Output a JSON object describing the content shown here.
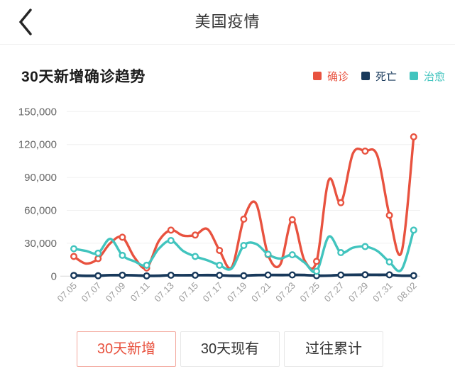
{
  "header": {
    "title": "美国疫情",
    "back_icon": "chevron-left"
  },
  "chart_header": {
    "title": "30天新增确诊趋势",
    "legend": [
      {
        "label": "确诊",
        "color": "#e8523f"
      },
      {
        "label": "死亡",
        "color": "#18395b"
      },
      {
        "label": "治愈",
        "color": "#41c4be"
      }
    ]
  },
  "chart_data": {
    "type": "line",
    "title": "30天新增确诊趋势",
    "x": [
      "07.05",
      "07.06",
      "07.07",
      "07.08",
      "07.09",
      "07.10",
      "07.11",
      "07.12",
      "07.13",
      "07.14",
      "07.15",
      "07.16",
      "07.17",
      "07.18",
      "07.19",
      "07.20",
      "07.21",
      "07.22",
      "07.23",
      "07.24",
      "07.25",
      "07.26",
      "07.27",
      "07.28",
      "07.29",
      "07.30",
      "07.31",
      "08.01",
      "08.02"
    ],
    "x_labels_shown": [
      "07.05",
      "07.07",
      "07.09",
      "07.11",
      "07.13",
      "07.15",
      "07.17",
      "07.19",
      "07.21",
      "07.23",
      "07.25",
      "07.27",
      "07.29",
      "07.31",
      "08.02"
    ],
    "x_label_interval": 2,
    "marker_interval": 2,
    "smooth": true,
    "grid": true,
    "legend_position": "top-right",
    "ylim": [
      0,
      150000
    ],
    "y_ticks": [
      0,
      30000,
      60000,
      90000,
      120000,
      150000
    ],
    "y_tick_labels": [
      "0",
      "30,000",
      "60,000",
      "90,000",
      "120,000",
      "150,000"
    ],
    "series": [
      {
        "name": "确诊",
        "key": "confirmed",
        "color": "#e8523f",
        "values": [
          18000,
          11500,
          16000,
          30000,
          35500,
          17000,
          7500,
          32000,
          42000,
          37000,
          37500,
          43000,
          23500,
          8000,
          52000,
          66500,
          19500,
          10500,
          51500,
          14500,
          13500,
          87500,
          67000,
          112000,
          114000,
          110000,
          55500,
          22000,
          127000
        ]
      },
      {
        "name": "死亡",
        "key": "deaths",
        "color": "#18395b",
        "values": [
          700,
          350,
          400,
          900,
          950,
          800,
          300,
          400,
          900,
          850,
          900,
          950,
          850,
          400,
          450,
          1000,
          1100,
          1050,
          1150,
          1100,
          450,
          500,
          1100,
          1250,
          1300,
          1200,
          1250,
          450,
          500
        ]
      },
      {
        "name": "治愈",
        "key": "cured",
        "color": "#41c4be",
        "values": [
          25000,
          23000,
          21000,
          34000,
          19000,
          13500,
          10000,
          25000,
          32500,
          23000,
          18000,
          14500,
          10000,
          7000,
          28000,
          29500,
          20000,
          16000,
          19500,
          12500,
          4500,
          36000,
          21500,
          26000,
          27000,
          23000,
          13000,
          6000,
          42000
        ]
      }
    ]
  },
  "tabs": [
    {
      "label": "30天新增",
      "active": true
    },
    {
      "label": "30天现有",
      "active": false
    },
    {
      "label": "过往累计",
      "active": false
    }
  ]
}
